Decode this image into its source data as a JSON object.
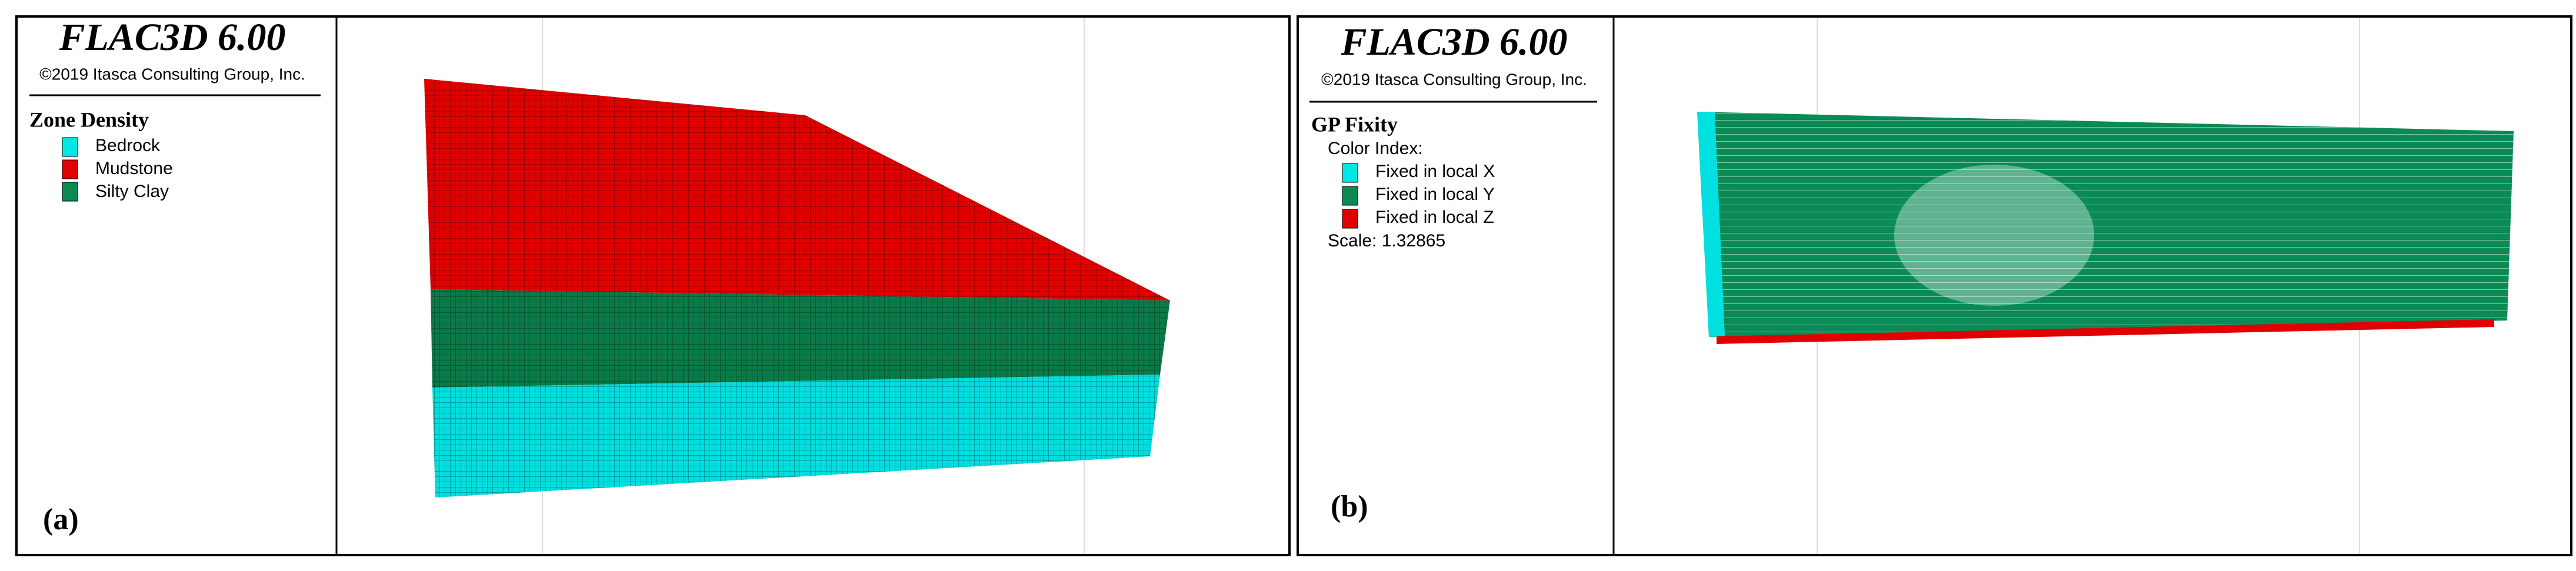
{
  "panels": [
    {
      "title": "FLAC3D 6.00",
      "copyright": "©2019 Itasca Consulting Group, Inc.",
      "legend_title": "Zone Density",
      "legend_items": [
        "Bedrock",
        "Mudstone",
        "Silty Clay"
      ],
      "label": "(a)"
    },
    {
      "title": "FLAC3D 6.00",
      "copyright": "©2019 Itasca Consulting Group, Inc.",
      "legend_title": "GP Fixity",
      "legend_subtitle": "Color Index:",
      "legend_items": [
        "Fixed in local X",
        "Fixed in local Y",
        "Fixed in local Z"
      ],
      "scale": "Scale: 1.32865",
      "label": "(b)"
    }
  ]
}
